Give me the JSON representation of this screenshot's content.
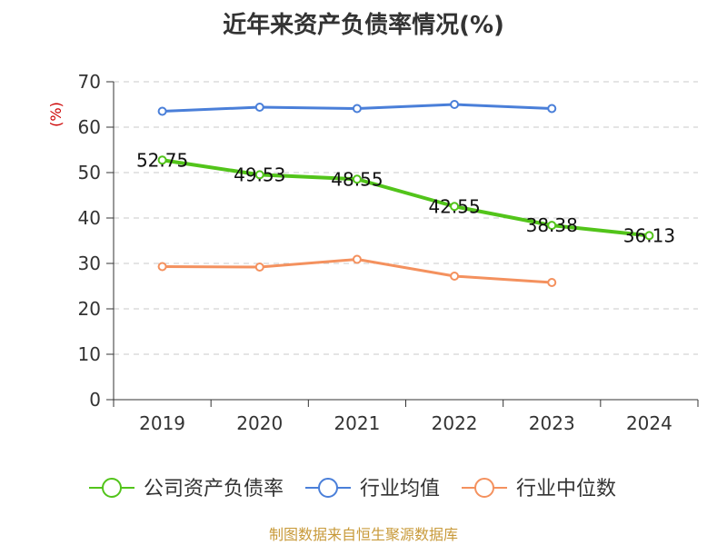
{
  "chart_data": {
    "type": "line",
    "title": "近年来资产负债率情况(%)",
    "ylabel": "(%)",
    "xlabel": "",
    "ylim": [
      0,
      70
    ],
    "yticks": [
      0,
      10,
      20,
      30,
      40,
      50,
      60,
      70
    ],
    "categories": [
      "2019",
      "2020",
      "2021",
      "2022",
      "2023",
      "2024"
    ],
    "grid": true,
    "legend_position": "bottom",
    "series": [
      {
        "name": "公司资产负债率",
        "color": "#52c41a",
        "values": [
          52.75,
          49.53,
          48.55,
          42.55,
          38.38,
          36.13
        ],
        "data_labels": [
          "52.75",
          "49.53",
          "48.55",
          "42.55",
          "38.38",
          "36.13"
        ]
      },
      {
        "name": "行业均值",
        "color": "#4a7fd9",
        "values": [
          63.5,
          64.4,
          64.1,
          65.0,
          64.1,
          null
        ]
      },
      {
        "name": "行业中位数",
        "color": "#f4915e",
        "values": [
          29.3,
          29.2,
          30.9,
          27.2,
          25.8,
          null
        ]
      }
    ]
  },
  "source": "制图数据来自恒生聚源数据库"
}
